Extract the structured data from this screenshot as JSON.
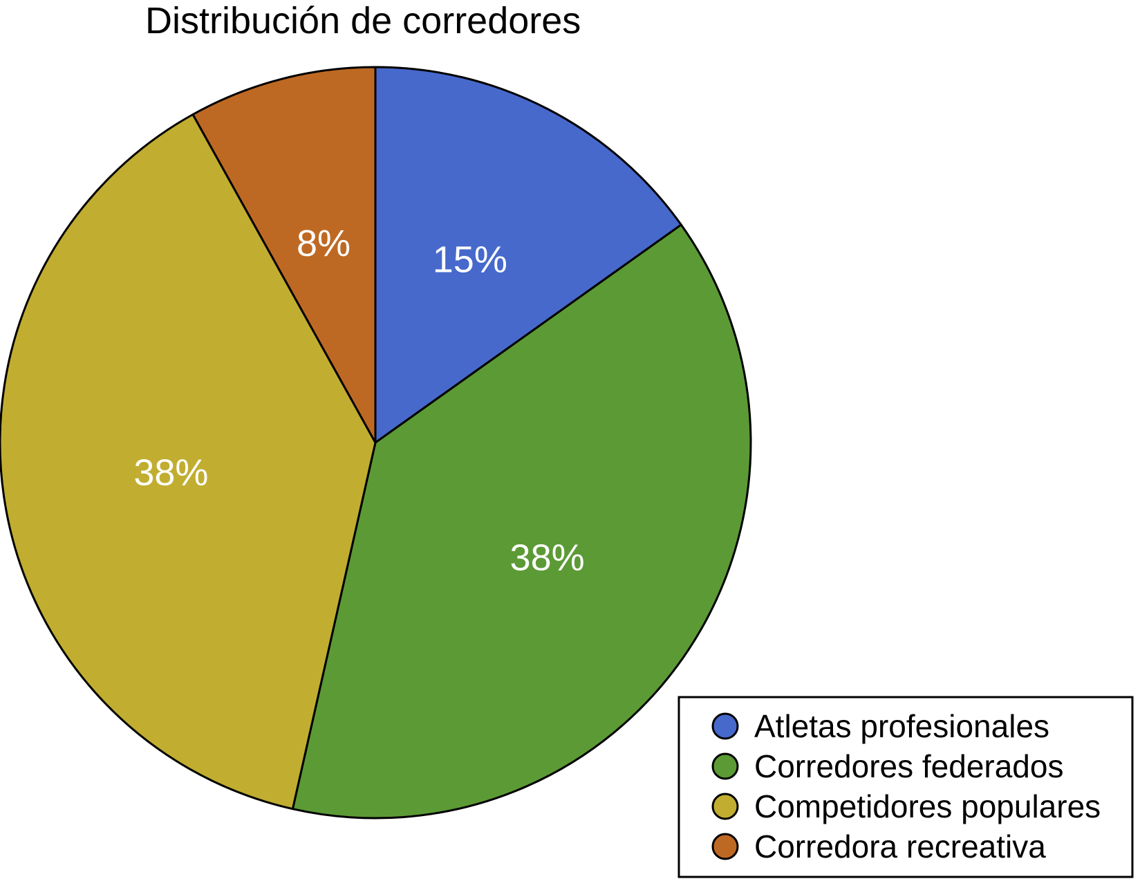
{
  "chart_data": {
    "type": "pie",
    "title": "Distribución de corredores",
    "legend_position": "bottom-right",
    "slices": [
      {
        "name": "Atletas profesionales",
        "value": 15,
        "label": "15%",
        "color": "#4769CC"
      },
      {
        "name": "Corredores federados",
        "value": 38,
        "label": "38%",
        "color": "#5C9A35"
      },
      {
        "name": "Competidores populares",
        "value": 38,
        "label": "38%",
        "color": "#C1AD30"
      },
      {
        "name": "Corredora recreativa",
        "value": 8,
        "label": "8%",
        "color": "#BE6923"
      }
    ]
  }
}
